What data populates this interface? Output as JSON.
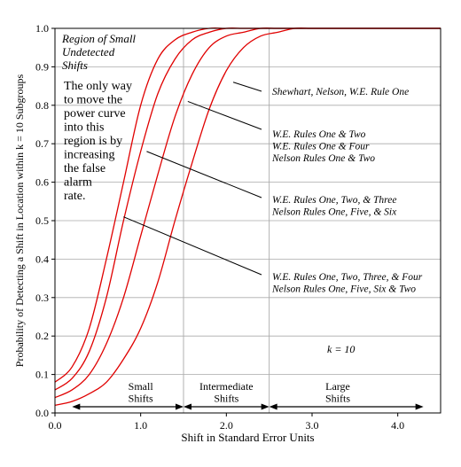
{
  "chart_data": {
    "type": "line",
    "xlabel": "Shift in Standard Error Units",
    "ylabel": "Probability of Detecting a Shift in Location within k = 10 Subgroups",
    "xlim": [
      0,
      4.5
    ],
    "ylim": [
      0,
      1.0
    ],
    "x_ticks": [
      "0.0",
      "1.0",
      "2.0",
      "3.0",
      "4.0"
    ],
    "y_ticks": [
      "0.0",
      "0.1",
      "0.2",
      "0.3",
      "0.4",
      "0.5",
      "0.6",
      "0.7",
      "0.8",
      "0.9",
      "1.0"
    ],
    "grid": true,
    "line_color": "#e00000",
    "series": [
      {
        "name": "W.E. Rules One, Two, Three, & Four / Nelson Rules One, Five, Six & Two",
        "x": [
          0,
          0.2,
          0.4,
          0.6,
          0.8,
          1.0,
          1.2,
          1.4,
          1.6,
          1.8,
          2.0,
          2.2,
          2.4
        ],
        "y": [
          0.08,
          0.12,
          0.22,
          0.4,
          0.6,
          0.8,
          0.92,
          0.97,
          0.99,
          1.0,
          1.0,
          1.0,
          1.0
        ]
      },
      {
        "name": "W.E. Rules One, Two, & Three / Nelson Rules One, Five, & Six",
        "x": [
          0,
          0.2,
          0.4,
          0.6,
          0.8,
          1.0,
          1.2,
          1.4,
          1.6,
          1.8,
          2.0,
          2.2,
          2.4,
          2.6
        ],
        "y": [
          0.06,
          0.09,
          0.16,
          0.3,
          0.5,
          0.68,
          0.83,
          0.92,
          0.97,
          0.99,
          1.0,
          1.0,
          1.0,
          1.0
        ]
      },
      {
        "name": "W.E. Rules One & Two / W.E. Rules One & Four / Nelson Rules One & Two",
        "x": [
          0,
          0.2,
          0.4,
          0.6,
          0.8,
          1.0,
          1.2,
          1.4,
          1.6,
          1.8,
          2.0,
          2.2,
          2.4,
          2.6,
          2.8,
          3.0
        ],
        "y": [
          0.04,
          0.06,
          0.1,
          0.18,
          0.3,
          0.46,
          0.62,
          0.77,
          0.88,
          0.95,
          0.98,
          0.99,
          1.0,
          1.0,
          1.0,
          1.0
        ]
      },
      {
        "name": "Shewhart, Nelson, W.E. Rule One",
        "x": [
          0,
          0.2,
          0.4,
          0.6,
          0.8,
          1.0,
          1.2,
          1.4,
          1.6,
          1.8,
          2.0,
          2.2,
          2.4,
          2.6,
          2.8,
          3.0,
          3.2
        ],
        "y": [
          0.02,
          0.03,
          0.05,
          0.08,
          0.14,
          0.22,
          0.34,
          0.5,
          0.65,
          0.79,
          0.89,
          0.95,
          0.98,
          0.99,
          1.0,
          1.0,
          1.0
        ]
      }
    ],
    "region_dividers_x": [
      1.5,
      2.5
    ],
    "annotations": {
      "region_title": [
        "Region of Small",
        "Undetected",
        "Shifts"
      ],
      "region_note": [
        "The only way",
        "to move the",
        "power curve",
        "into this",
        "region is by",
        "increasing",
        "the false",
        "alarm",
        "rate."
      ],
      "curve_labels": [
        {
          "lines": [
            "Shewhart, Nelson, W.E. Rule One"
          ],
          "point": [
            2.08,
            0.86
          ]
        },
        {
          "lines": [
            "W.E. Rules One & Two",
            "W.E. Rules One & Four",
            "Nelson Rules One & Two"
          ],
          "point": [
            1.55,
            0.81
          ]
        },
        {
          "lines": [
            "W.E. Rules One, Two, & Three",
            "Nelson Rules One, Five, & Six"
          ],
          "point": [
            1.07,
            0.68
          ]
        },
        {
          "lines": [
            "W.E. Rules One, Two, Three, & Four",
            "Nelson Rules One, Five, Six & Two"
          ],
          "point": [
            0.8,
            0.51
          ]
        }
      ],
      "k_label": "k = 10",
      "regions": [
        {
          "lines": [
            "Small",
            "Shifts"
          ],
          "center": 1.0
        },
        {
          "lines": [
            "Intermediate",
            "Shifts"
          ],
          "center": 2.0
        },
        {
          "lines": [
            "Large",
            "Shifts"
          ],
          "center": 3.3
        }
      ],
      "arrow_segments": [
        [
          0.2,
          1.5
        ],
        [
          1.5,
          2.5
        ],
        [
          2.5,
          4.3
        ]
      ]
    }
  }
}
